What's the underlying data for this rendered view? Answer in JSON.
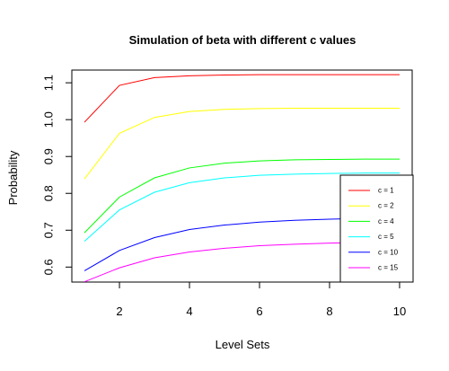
{
  "chart_data": {
    "type": "line",
    "title": "Simulation of beta with different c values",
    "xlabel": "Level Sets",
    "ylabel": "Probability",
    "xlim": [
      0.64,
      10.36
    ],
    "ylim": [
      0.5593,
      1.1345
    ],
    "x_ticks": [
      2,
      4,
      6,
      8,
      10
    ],
    "y_ticks": [
      0.6,
      0.7,
      0.8,
      0.9,
      1.0,
      1.1
    ],
    "y_tick_labels": [
      "0.6",
      "0.7",
      "0.8",
      "0.9",
      "1.0",
      "1.1"
    ],
    "grid": false,
    "legend_position": "right",
    "x": [
      1,
      2,
      3,
      4,
      5,
      6,
      7,
      8,
      9,
      10
    ],
    "series": [
      {
        "name": "c = 1",
        "color": "#ff0000",
        "values": [
          0.993,
          1.093,
          1.114,
          1.119,
          1.121,
          1.122,
          1.122,
          1.122,
          1.122,
          1.122
        ]
      },
      {
        "name": "c = 2",
        "color": "#ffff00",
        "values": [
          0.839,
          0.963,
          1.006,
          1.022,
          1.028,
          1.03,
          1.031,
          1.031,
          1.031,
          1.031
        ]
      },
      {
        "name": "c = 4",
        "color": "#00ff00",
        "values": [
          0.693,
          0.79,
          0.842,
          0.869,
          0.882,
          0.888,
          0.891,
          0.892,
          0.893,
          0.893
        ]
      },
      {
        "name": "c = 5",
        "color": "#00ffff",
        "values": [
          0.67,
          0.755,
          0.803,
          0.829,
          0.842,
          0.849,
          0.852,
          0.854,
          0.855,
          0.855
        ]
      },
      {
        "name": "c = 10",
        "color": "#0000ff",
        "values": [
          0.59,
          0.645,
          0.68,
          0.702,
          0.714,
          0.722,
          0.727,
          0.73,
          0.732,
          0.733
        ]
      },
      {
        "name": "c = 15",
        "color": "#ff00ff",
        "values": [
          0.56,
          0.598,
          0.625,
          0.641,
          0.651,
          0.658,
          0.662,
          0.665,
          0.667,
          0.668
        ]
      }
    ]
  }
}
